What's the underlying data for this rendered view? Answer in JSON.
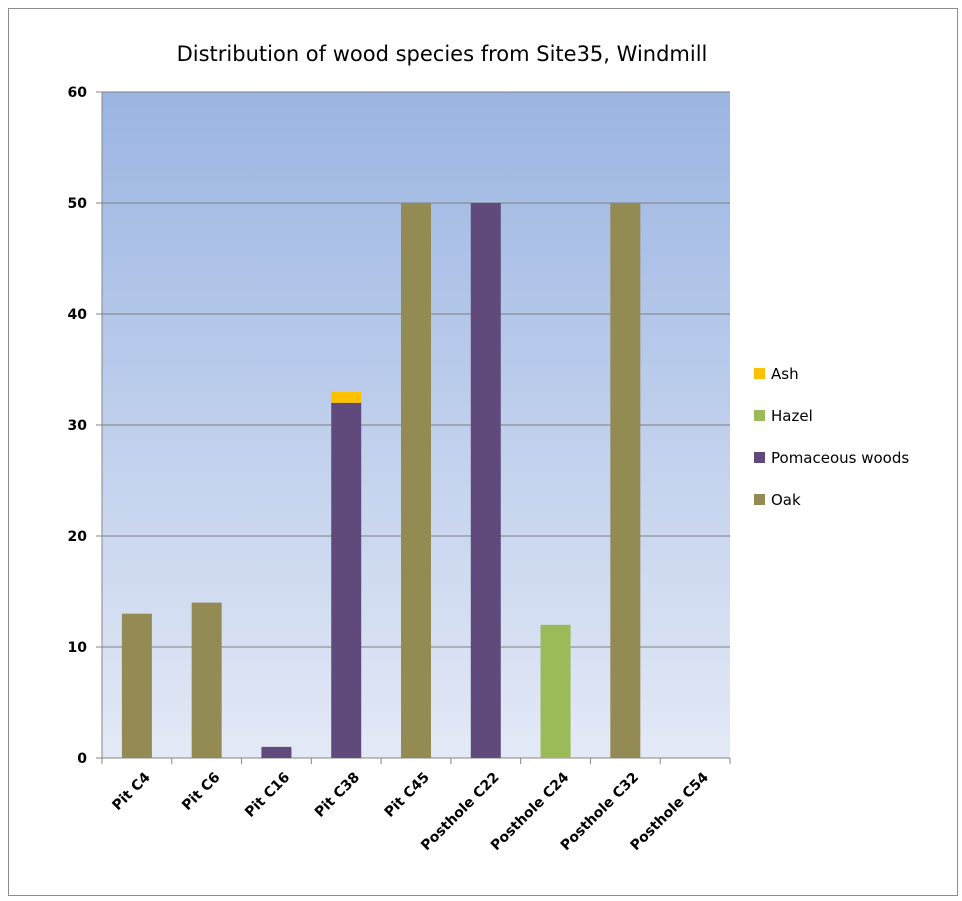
{
  "chart_data": {
    "type": "bar",
    "stacked": true,
    "title": "Distribution of wood species from Site35, Windmill",
    "xlabel": "",
    "ylabel": "",
    "ylim": [
      0,
      60
    ],
    "yticks": [
      0,
      10,
      20,
      30,
      40,
      50,
      60
    ],
    "grid": true,
    "legend_position": "right",
    "categories": [
      "Pit C4",
      "Pit C6",
      "Pit C16",
      "Pit C38",
      "Pit C45",
      "Posthole C22",
      "Posthole C24",
      "Posthole C32",
      "Posthole C54"
    ],
    "series": [
      {
        "name": "Oak",
        "color": "#948A54",
        "values": [
          13,
          14,
          0,
          0,
          50,
          0,
          0,
          50,
          0
        ]
      },
      {
        "name": "Pomaceous woods",
        "color": "#604A7B",
        "values": [
          0,
          0,
          1,
          32,
          0,
          50,
          0,
          0,
          0
        ]
      },
      {
        "name": "Hazel",
        "color": "#9BBB59",
        "values": [
          0,
          0,
          0,
          0,
          0,
          0,
          12,
          0,
          0
        ]
      },
      {
        "name": "Ash",
        "color": "#FFC000",
        "values": [
          0,
          0,
          0,
          1,
          0,
          0,
          0,
          0,
          0
        ]
      }
    ],
    "legend_order": [
      "Ash",
      "Hazel",
      "Pomaceous woods",
      "Oak"
    ],
    "plot_background": {
      "top": "#9BB5E2",
      "bottom": "#E3E9F6"
    },
    "gridline_color": "#7F7F7F"
  }
}
